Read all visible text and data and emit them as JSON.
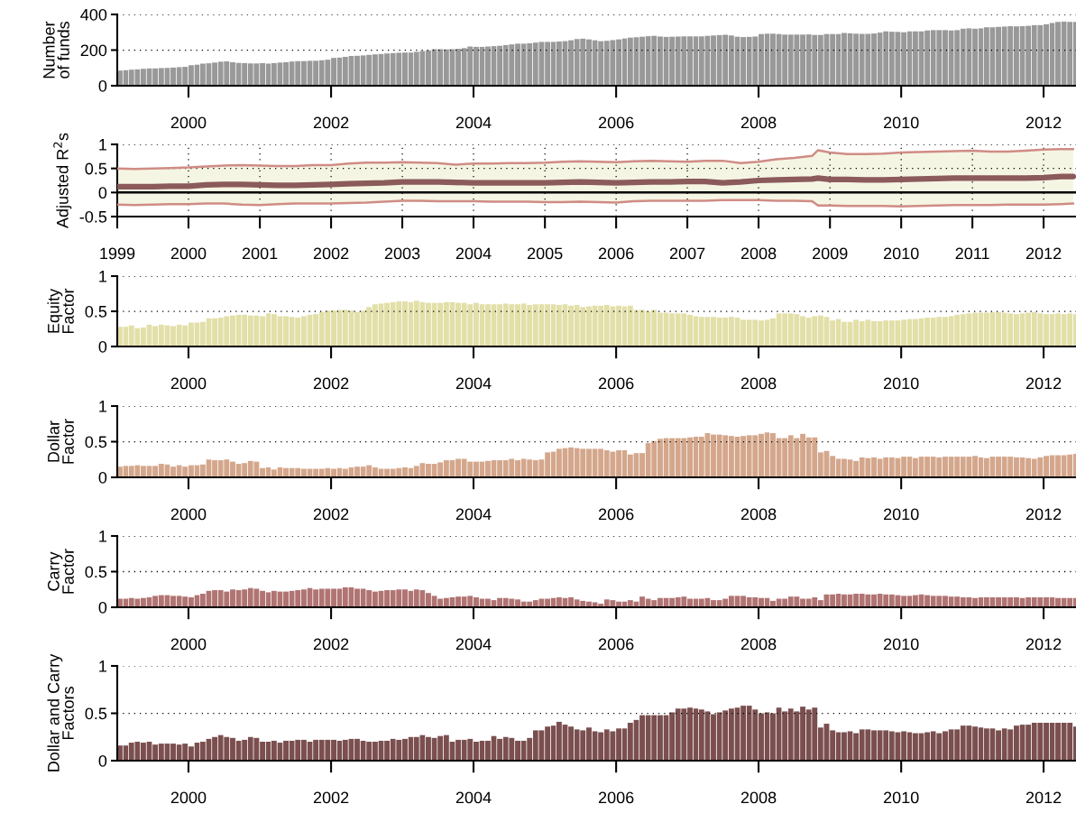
{
  "chart_data": [
    {
      "type": "bar",
      "ylabel": "Number\nof funds",
      "color": "#999999",
      "ylim": [
        0,
        400
      ],
      "yticks": [
        0,
        200,
        400
      ],
      "xlim": [
        "1999-01-01",
        "2012-06-15"
      ],
      "xticks": [
        "2000",
        "2002",
        "2004",
        "2006",
        "2008",
        "2010",
        "2012"
      ],
      "grid": "y",
      "x": [
        "1999-01",
        "1999-02",
        "1999-03",
        "1999-04",
        "1999-05",
        "1999-06",
        "1999-07",
        "1999-08",
        "1999-09",
        "1999-10",
        "1999-11",
        "1999-12",
        "2000-01",
        "2000-02",
        "2000-03",
        "2000-04",
        "2000-05",
        "2000-06",
        "2000-07",
        "2000-08",
        "2000-09",
        "2000-10",
        "2000-11",
        "2000-12",
        "2001-01",
        "2001-02",
        "2001-03",
        "2001-04",
        "2001-05",
        "2001-06",
        "2001-07",
        "2001-08",
        "2001-09",
        "2001-10",
        "2001-11",
        "2001-12",
        "2002-01",
        "2002-02",
        "2002-03",
        "2002-04",
        "2002-05",
        "2002-06",
        "2002-07",
        "2002-08",
        "2002-09",
        "2002-10",
        "2002-11",
        "2002-12",
        "2003-01",
        "2003-02",
        "2003-03",
        "2003-04",
        "2003-05",
        "2003-06",
        "2003-07",
        "2003-08",
        "2003-09",
        "2003-10",
        "2003-11",
        "2003-12",
        "2004-01",
        "2004-02",
        "2004-03",
        "2004-04",
        "2004-05",
        "2004-06",
        "2004-07",
        "2004-08",
        "2004-09",
        "2004-10",
        "2004-11",
        "2004-12",
        "2005-01",
        "2005-02",
        "2005-03",
        "2005-04",
        "2005-05",
        "2005-06",
        "2005-07",
        "2005-08",
        "2005-09",
        "2005-10",
        "2005-11",
        "2005-12",
        "2006-01",
        "2006-02",
        "2006-03",
        "2006-04",
        "2006-05",
        "2006-06",
        "2006-07",
        "2006-08",
        "2006-09",
        "2006-10",
        "2006-11",
        "2006-12",
        "2007-01",
        "2007-02",
        "2007-03",
        "2007-04",
        "2007-05",
        "2007-06",
        "2007-07",
        "2007-08",
        "2007-09",
        "2007-10",
        "2007-11",
        "2007-12",
        "2008-01",
        "2008-02",
        "2008-03",
        "2008-04",
        "2008-05",
        "2008-06",
        "2008-07",
        "2008-08",
        "2008-09",
        "2008-10",
        "2008-11",
        "2008-12",
        "2009-01",
        "2009-02",
        "2009-03",
        "2009-04",
        "2009-05",
        "2009-06",
        "2009-07",
        "2009-08",
        "2009-09",
        "2009-10",
        "2009-11",
        "2009-12",
        "2010-01",
        "2010-02",
        "2010-03",
        "2010-04",
        "2010-05",
        "2010-06",
        "2010-07",
        "2010-08",
        "2010-09",
        "2010-10",
        "2010-11",
        "2010-12",
        "2011-01",
        "2011-02",
        "2011-03",
        "2011-04",
        "2011-05",
        "2011-06",
        "2011-07",
        "2011-08",
        "2011-09",
        "2011-10",
        "2011-11",
        "2011-12",
        "2012-01",
        "2012-02",
        "2012-03",
        "2012-04",
        "2012-05",
        "2012-06"
      ],
      "values": [
        85,
        87,
        90,
        92,
        95,
        97,
        97,
        99,
        100,
        102,
        104,
        106,
        115,
        118,
        124,
        126,
        130,
        135,
        137,
        132,
        128,
        127,
        125,
        125,
        127,
        124,
        127,
        130,
        132,
        136,
        138,
        138,
        140,
        140,
        143,
        146,
        156,
        158,
        162,
        167,
        168,
        170,
        173,
        176,
        178,
        181,
        183,
        185,
        186,
        186,
        190,
        195,
        198,
        205,
        205,
        204,
        205,
        207,
        211,
        220,
        218,
        218,
        220,
        222,
        224,
        228,
        232,
        236,
        236,
        238,
        242,
        246,
        246,
        246,
        248,
        250,
        255,
        262,
        264,
        260,
        255,
        250,
        252,
        256,
        260,
        265,
        270,
        272,
        275,
        278,
        280,
        276,
        274,
        275,
        276,
        277,
        277,
        277,
        277,
        280,
        282,
        284,
        286,
        282,
        275,
        273,
        274,
        276,
        290,
        292,
        292,
        290,
        287,
        287,
        287,
        287,
        288,
        285,
        285,
        290,
        290,
        290,
        296,
        294,
        292,
        291,
        291,
        293,
        298,
        305,
        303,
        302,
        300,
        305,
        305,
        305,
        310,
        312,
        312,
        312,
        310,
        312,
        320,
        322,
        320,
        322,
        328,
        328,
        330,
        332,
        334,
        333,
        334,
        336,
        340,
        340,
        345,
        352,
        358,
        360,
        358,
        358
      ]
    },
    {
      "type": "line",
      "ylabel": "Adjusted R$^{2}$s",
      "ylim": [
        -0.5,
        1
      ],
      "yticks": [
        -0.5,
        0,
        0.5,
        1
      ],
      "xlim": [
        "1999-01-01",
        "2012-06-15"
      ],
      "xticks": [
        "1999",
        "2000",
        "2001",
        "2002",
        "2003",
        "2004",
        "2005",
        "2006",
        "2007",
        "2008",
        "2009",
        "2010",
        "2011",
        "2012"
      ],
      "grid": true,
      "ref_lines": [
        {
          "axis": "y",
          "value": 0,
          "color": "#000000"
        }
      ],
      "x": [
        "1999-01",
        "1999-04",
        "1999-07",
        "1999-10",
        "2000-01",
        "2000-04",
        "2000-07",
        "2000-10",
        "2001-01",
        "2001-04",
        "2001-07",
        "2001-10",
        "2002-01",
        "2002-04",
        "2002-07",
        "2002-10",
        "2003-01",
        "2003-04",
        "2003-07",
        "2003-10",
        "2004-01",
        "2004-04",
        "2004-07",
        "2004-10",
        "2005-01",
        "2005-04",
        "2005-07",
        "2005-10",
        "2006-01",
        "2006-04",
        "2006-07",
        "2006-10",
        "2007-01",
        "2007-04",
        "2007-07",
        "2007-10",
        "2008-01",
        "2008-04",
        "2008-07",
        "2008-10",
        "2008-11",
        "2009-01",
        "2009-04",
        "2009-07",
        "2009-10",
        "2010-01",
        "2010-04",
        "2010-07",
        "2010-10",
        "2011-01",
        "2011-04",
        "2011-07",
        "2011-10",
        "2012-01",
        "2012-04",
        "2012-06"
      ],
      "series": [
        {
          "color": "#d08c85",
          "values": [
            0.5,
            0.49,
            0.5,
            0.51,
            0.52,
            0.54,
            0.56,
            0.57,
            0.56,
            0.55,
            0.55,
            0.57,
            0.57,
            0.6,
            0.62,
            0.62,
            0.63,
            0.62,
            0.61,
            0.58,
            0.6,
            0.6,
            0.61,
            0.61,
            0.62,
            0.64,
            0.65,
            0.64,
            0.63,
            0.65,
            0.66,
            0.65,
            0.64,
            0.66,
            0.66,
            0.61,
            0.64,
            0.69,
            0.72,
            0.76,
            0.88,
            0.83,
            0.8,
            0.8,
            0.81,
            0.83,
            0.84,
            0.85,
            0.86,
            0.87,
            0.85,
            0.85,
            0.87,
            0.89,
            0.9,
            0.9
          ]
        },
        {
          "color": "#8b5a5a",
          "values": [
            0.12,
            0.12,
            0.12,
            0.13,
            0.13,
            0.16,
            0.17,
            0.17,
            0.16,
            0.15,
            0.15,
            0.16,
            0.17,
            0.18,
            0.19,
            0.2,
            0.22,
            0.22,
            0.22,
            0.21,
            0.2,
            0.2,
            0.2,
            0.2,
            0.2,
            0.21,
            0.22,
            0.21,
            0.2,
            0.21,
            0.22,
            0.22,
            0.23,
            0.23,
            0.2,
            0.22,
            0.25,
            0.26,
            0.27,
            0.28,
            0.3,
            0.27,
            0.27,
            0.26,
            0.26,
            0.27,
            0.28,
            0.29,
            0.3,
            0.3,
            0.3,
            0.3,
            0.3,
            0.31,
            0.33,
            0.33
          ],
          "lower": [
            -0.25,
            -0.26,
            -0.25,
            -0.24,
            -0.24,
            -0.23,
            -0.23,
            -0.25,
            -0.26,
            -0.24,
            -0.23,
            -0.23,
            -0.23,
            -0.22,
            -0.21,
            -0.19,
            -0.17,
            -0.17,
            -0.18,
            -0.18,
            -0.18,
            -0.19,
            -0.19,
            -0.19,
            -0.2,
            -0.2,
            -0.19,
            -0.2,
            -0.21,
            -0.18,
            -0.17,
            -0.17,
            -0.17,
            -0.17,
            -0.16,
            -0.16,
            -0.16,
            -0.17,
            -0.17,
            -0.18,
            -0.27,
            -0.27,
            -0.28,
            -0.28,
            -0.28,
            -0.29,
            -0.28,
            -0.27,
            -0.26,
            -0.26,
            -0.26,
            -0.25,
            -0.25,
            -0.25,
            -0.24,
            -0.23
          ],
          "upper": [
            0.5,
            0.49,
            0.5,
            0.51,
            0.52,
            0.54,
            0.56,
            0.57,
            0.56,
            0.55,
            0.55,
            0.57,
            0.57,
            0.6,
            0.62,
            0.62,
            0.63,
            0.62,
            0.61,
            0.58,
            0.6,
            0.6,
            0.61,
            0.61,
            0.62,
            0.64,
            0.65,
            0.64,
            0.63,
            0.65,
            0.66,
            0.65,
            0.64,
            0.66,
            0.66,
            0.61,
            0.64,
            0.69,
            0.72,
            0.76,
            0.88,
            0.83,
            0.8,
            0.8,
            0.81,
            0.83,
            0.84,
            0.85,
            0.86,
            0.87,
            0.85,
            0.85,
            0.87,
            0.89,
            0.9,
            0.9
          ]
        },
        {
          "color": "#d08c85",
          "values": [
            -0.25,
            -0.26,
            -0.25,
            -0.24,
            -0.24,
            -0.23,
            -0.23,
            -0.25,
            -0.26,
            -0.24,
            -0.23,
            -0.23,
            -0.23,
            -0.22,
            -0.21,
            -0.19,
            -0.17,
            -0.17,
            -0.18,
            -0.18,
            -0.18,
            -0.19,
            -0.19,
            -0.19,
            -0.2,
            -0.2,
            -0.19,
            -0.2,
            -0.21,
            -0.18,
            -0.17,
            -0.17,
            -0.17,
            -0.17,
            -0.16,
            -0.16,
            -0.16,
            -0.17,
            -0.17,
            -0.18,
            -0.27,
            -0.27,
            -0.28,
            -0.28,
            -0.28,
            -0.29,
            -0.28,
            -0.27,
            -0.26,
            -0.26,
            -0.26,
            -0.25,
            -0.25,
            -0.25,
            -0.24,
            -0.23
          ]
        }
      ]
    },
    {
      "type": "bar",
      "ylabel": "Equity\nFactor",
      "color": "#e2dfa8",
      "ylim": [
        0,
        1
      ],
      "yticks": [
        0,
        0.5,
        1
      ],
      "xlim": [
        "1999-01-01",
        "2012-06-15"
      ],
      "xticks": [
        "2000",
        "2002",
        "2004",
        "2006",
        "2008",
        "2010",
        "2012"
      ],
      "grid": "y",
      "x": [
        "1999-01",
        "1999-02",
        "1999-03",
        "1999-04",
        "1999-05",
        "1999-06",
        "1999-07",
        "1999-08",
        "1999-09",
        "1999-10",
        "1999-11",
        "1999-12",
        "2000-01",
        "2000-02",
        "2000-03",
        "2000-04",
        "2000-05",
        "2000-06",
        "2000-07",
        "2000-08",
        "2000-09",
        "2000-10",
        "2000-11",
        "2000-12",
        "2001-01",
        "2001-02",
        "2001-03",
        "2001-04",
        "2001-05",
        "2001-06",
        "2001-07",
        "2001-08",
        "2001-09",
        "2001-10",
        "2001-11",
        "2001-12",
        "2002-01",
        "2002-02",
        "2002-03",
        "2002-04",
        "2002-05",
        "2002-06",
        "2002-07",
        "2002-08",
        "2002-09",
        "2002-10",
        "2002-11",
        "2002-12",
        "2003-01",
        "2003-02",
        "2003-03",
        "2003-04",
        "2003-05",
        "2003-06",
        "2003-07",
        "2003-08",
        "2003-09",
        "2003-10",
        "2003-11",
        "2003-12",
        "2004-01",
        "2004-02",
        "2004-03",
        "2004-04",
        "2004-05",
        "2004-06",
        "2004-07",
        "2004-08",
        "2004-09",
        "2004-10",
        "2004-11",
        "2004-12",
        "2005-01",
        "2005-02",
        "2005-03",
        "2005-04",
        "2005-05",
        "2005-06",
        "2005-07",
        "2005-08",
        "2005-09",
        "2005-10",
        "2005-11",
        "2005-12",
        "2006-01",
        "2006-02",
        "2006-03",
        "2006-04",
        "2006-05",
        "2006-06",
        "2006-07",
        "2006-08",
        "2006-09",
        "2006-10",
        "2006-11",
        "2006-12",
        "2007-01",
        "2007-02",
        "2007-03",
        "2007-04",
        "2007-05",
        "2007-06",
        "2007-07",
        "2007-08",
        "2007-09",
        "2007-10",
        "2007-11",
        "2007-12",
        "2008-01",
        "2008-02",
        "2008-03",
        "2008-04",
        "2008-05",
        "2008-06",
        "2008-07",
        "2008-08",
        "2008-09",
        "2008-10",
        "2008-11",
        "2008-12",
        "2009-01",
        "2009-02",
        "2009-03",
        "2009-04",
        "2009-05",
        "2009-06",
        "2009-07",
        "2009-08",
        "2009-09",
        "2009-10",
        "2009-11",
        "2009-12",
        "2010-01",
        "2010-02",
        "2010-03",
        "2010-04",
        "2010-05",
        "2010-06",
        "2010-07",
        "2010-08",
        "2010-09",
        "2010-10",
        "2010-11",
        "2010-12",
        "2011-01",
        "2011-02",
        "2011-03",
        "2011-04",
        "2011-05",
        "2011-06",
        "2011-07",
        "2011-08",
        "2011-09",
        "2011-10",
        "2011-11",
        "2011-12",
        "2012-01",
        "2012-02",
        "2012-03",
        "2012-04",
        "2012-05",
        "2012-06"
      ],
      "values": [
        0.28,
        0.28,
        0.3,
        0.26,
        0.27,
        0.31,
        0.29,
        0.31,
        0.3,
        0.29,
        0.31,
        0.3,
        0.34,
        0.34,
        0.35,
        0.4,
        0.4,
        0.41,
        0.43,
        0.44,
        0.45,
        0.45,
        0.44,
        0.44,
        0.43,
        0.47,
        0.46,
        0.43,
        0.43,
        0.42,
        0.41,
        0.43,
        0.45,
        0.46,
        0.49,
        0.51,
        0.51,
        0.52,
        0.52,
        0.51,
        0.49,
        0.51,
        0.56,
        0.6,
        0.61,
        0.62,
        0.63,
        0.64,
        0.64,
        0.63,
        0.65,
        0.63,
        0.62,
        0.62,
        0.62,
        0.63,
        0.63,
        0.62,
        0.62,
        0.6,
        0.62,
        0.6,
        0.6,
        0.6,
        0.6,
        0.61,
        0.6,
        0.6,
        0.61,
        0.59,
        0.6,
        0.6,
        0.6,
        0.6,
        0.59,
        0.6,
        0.58,
        0.59,
        0.56,
        0.57,
        0.58,
        0.58,
        0.59,
        0.57,
        0.58,
        0.57,
        0.58,
        0.52,
        0.52,
        0.5,
        0.52,
        0.48,
        0.48,
        0.47,
        0.47,
        0.47,
        0.45,
        0.43,
        0.42,
        0.42,
        0.42,
        0.41,
        0.41,
        0.42,
        0.41,
        0.38,
        0.38,
        0.38,
        0.37,
        0.38,
        0.4,
        0.47,
        0.47,
        0.47,
        0.46,
        0.43,
        0.41,
        0.43,
        0.44,
        0.42,
        0.37,
        0.39,
        0.35,
        0.35,
        0.38,
        0.36,
        0.38,
        0.36,
        0.36,
        0.37,
        0.37,
        0.37,
        0.38,
        0.39,
        0.39,
        0.4,
        0.41,
        0.41,
        0.42,
        0.42,
        0.43,
        0.45,
        0.46,
        0.47,
        0.48,
        0.48,
        0.48,
        0.49,
        0.49,
        0.48,
        0.47,
        0.46,
        0.47,
        0.48,
        0.49,
        0.47,
        0.46,
        0.46,
        0.47,
        0.46,
        0.47,
        0.46
      ]
    },
    {
      "type": "bar",
      "ylabel": "Dollar\nFactor",
      "color": "#d4a78c",
      "ylim": [
        0,
        1
      ],
      "yticks": [
        0,
        0.5,
        1
      ],
      "xlim": [
        "1999-01-01",
        "2012-06-15"
      ],
      "xticks": [
        "2000",
        "2002",
        "2004",
        "2006",
        "2008",
        "2010",
        "2012"
      ],
      "grid": "y",
      "x": [
        "1999-01",
        "1999-02",
        "1999-03",
        "1999-04",
        "1999-05",
        "1999-06",
        "1999-07",
        "1999-08",
        "1999-09",
        "1999-10",
        "1999-11",
        "1999-12",
        "2000-01",
        "2000-02",
        "2000-03",
        "2000-04",
        "2000-05",
        "2000-06",
        "2000-07",
        "2000-08",
        "2000-09",
        "2000-10",
        "2000-11",
        "2000-12",
        "2001-01",
        "2001-02",
        "2001-03",
        "2001-04",
        "2001-05",
        "2001-06",
        "2001-07",
        "2001-08",
        "2001-09",
        "2001-10",
        "2001-11",
        "2001-12",
        "2002-01",
        "2002-02",
        "2002-03",
        "2002-04",
        "2002-05",
        "2002-06",
        "2002-07",
        "2002-08",
        "2002-09",
        "2002-10",
        "2002-11",
        "2002-12",
        "2003-01",
        "2003-02",
        "2003-03",
        "2003-04",
        "2003-05",
        "2003-06",
        "2003-07",
        "2003-08",
        "2003-09",
        "2003-10",
        "2003-11",
        "2003-12",
        "2004-01",
        "2004-02",
        "2004-03",
        "2004-04",
        "2004-05",
        "2004-06",
        "2004-07",
        "2004-08",
        "2004-09",
        "2004-10",
        "2004-11",
        "2004-12",
        "2005-01",
        "2005-02",
        "2005-03",
        "2005-04",
        "2005-05",
        "2005-06",
        "2005-07",
        "2005-08",
        "2005-09",
        "2005-10",
        "2005-11",
        "2005-12",
        "2006-01",
        "2006-02",
        "2006-03",
        "2006-04",
        "2006-05",
        "2006-06",
        "2006-07",
        "2006-08",
        "2006-09",
        "2006-10",
        "2006-11",
        "2006-12",
        "2007-01",
        "2007-02",
        "2007-03",
        "2007-04",
        "2007-05",
        "2007-06",
        "2007-07",
        "2007-08",
        "2007-09",
        "2007-10",
        "2007-11",
        "2007-12",
        "2008-01",
        "2008-02",
        "2008-03",
        "2008-04",
        "2008-05",
        "2008-06",
        "2008-07",
        "2008-08",
        "2008-09",
        "2008-10",
        "2008-11",
        "2008-12",
        "2009-01",
        "2009-02",
        "2009-03",
        "2009-04",
        "2009-05",
        "2009-06",
        "2009-07",
        "2009-08",
        "2009-09",
        "2009-10",
        "2009-11",
        "2009-12",
        "2010-01",
        "2010-02",
        "2010-03",
        "2010-04",
        "2010-05",
        "2010-06",
        "2010-07",
        "2010-08",
        "2010-09",
        "2010-10",
        "2010-11",
        "2010-12",
        "2011-01",
        "2011-02",
        "2011-03",
        "2011-04",
        "2011-05",
        "2011-06",
        "2011-07",
        "2011-08",
        "2011-09",
        "2011-10",
        "2011-11",
        "2011-12",
        "2012-01",
        "2012-02",
        "2012-03",
        "2012-04",
        "2012-05",
        "2012-06"
      ],
      "values": [
        0.15,
        0.16,
        0.16,
        0.17,
        0.16,
        0.16,
        0.16,
        0.19,
        0.18,
        0.15,
        0.17,
        0.15,
        0.17,
        0.17,
        0.18,
        0.25,
        0.24,
        0.24,
        0.25,
        0.22,
        0.19,
        0.2,
        0.23,
        0.22,
        0.13,
        0.14,
        0.11,
        0.14,
        0.13,
        0.13,
        0.13,
        0.12,
        0.12,
        0.12,
        0.12,
        0.13,
        0.12,
        0.13,
        0.12,
        0.14,
        0.15,
        0.15,
        0.17,
        0.14,
        0.12,
        0.12,
        0.12,
        0.13,
        0.14,
        0.13,
        0.16,
        0.2,
        0.19,
        0.19,
        0.21,
        0.24,
        0.24,
        0.26,
        0.26,
        0.22,
        0.22,
        0.22,
        0.23,
        0.24,
        0.24,
        0.24,
        0.26,
        0.24,
        0.26,
        0.25,
        0.24,
        0.25,
        0.35,
        0.36,
        0.4,
        0.41,
        0.42,
        0.41,
        0.4,
        0.4,
        0.4,
        0.4,
        0.38,
        0.36,
        0.38,
        0.38,
        0.32,
        0.34,
        0.34,
        0.48,
        0.51,
        0.54,
        0.55,
        0.55,
        0.55,
        0.55,
        0.56,
        0.57,
        0.57,
        0.62,
        0.6,
        0.6,
        0.59,
        0.58,
        0.57,
        0.58,
        0.59,
        0.59,
        0.61,
        0.63,
        0.62,
        0.55,
        0.55,
        0.59,
        0.55,
        0.61,
        0.56,
        0.56,
        0.35,
        0.37,
        0.3,
        0.26,
        0.26,
        0.25,
        0.23,
        0.28,
        0.27,
        0.28,
        0.26,
        0.28,
        0.28,
        0.27,
        0.29,
        0.29,
        0.27,
        0.29,
        0.29,
        0.29,
        0.28,
        0.29,
        0.29,
        0.29,
        0.29,
        0.29,
        0.3,
        0.28,
        0.27,
        0.29,
        0.29,
        0.29,
        0.29,
        0.28,
        0.28,
        0.27,
        0.26,
        0.28,
        0.3,
        0.31,
        0.31,
        0.31,
        0.32,
        0.33
      ]
    },
    {
      "type": "bar",
      "ylabel": "Carry\nFactor",
      "color": "#b07473",
      "ylim": [
        0,
        1
      ],
      "yticks": [
        0,
        0.5,
        1
      ],
      "xlim": [
        "1999-01-01",
        "2012-06-15"
      ],
      "xticks": [
        "2000",
        "2002",
        "2004",
        "2006",
        "2008",
        "2010",
        "2012"
      ],
      "grid": "y",
      "x": [
        "1999-01",
        "1999-02",
        "1999-03",
        "1999-04",
        "1999-05",
        "1999-06",
        "1999-07",
        "1999-08",
        "1999-09",
        "1999-10",
        "1999-11",
        "1999-12",
        "2000-01",
        "2000-02",
        "2000-03",
        "2000-04",
        "2000-05",
        "2000-06",
        "2000-07",
        "2000-08",
        "2000-09",
        "2000-10",
        "2000-11",
        "2000-12",
        "2001-01",
        "2001-02",
        "2001-03",
        "2001-04",
        "2001-05",
        "2001-06",
        "2001-07",
        "2001-08",
        "2001-09",
        "2001-10",
        "2001-11",
        "2001-12",
        "2002-01",
        "2002-02",
        "2002-03",
        "2002-04",
        "2002-05",
        "2002-06",
        "2002-07",
        "2002-08",
        "2002-09",
        "2002-10",
        "2002-11",
        "2002-12",
        "2003-01",
        "2003-02",
        "2003-03",
        "2003-04",
        "2003-05",
        "2003-06",
        "2003-07",
        "2003-08",
        "2003-09",
        "2003-10",
        "2003-11",
        "2003-12",
        "2004-01",
        "2004-02",
        "2004-03",
        "2004-04",
        "2004-05",
        "2004-06",
        "2004-07",
        "2004-08",
        "2004-09",
        "2004-10",
        "2004-11",
        "2004-12",
        "2005-01",
        "2005-02",
        "2005-03",
        "2005-04",
        "2005-05",
        "2005-06",
        "2005-07",
        "2005-08",
        "2005-09",
        "2005-10",
        "2005-11",
        "2005-12",
        "2006-01",
        "2006-02",
        "2006-03",
        "2006-04",
        "2006-05",
        "2006-06",
        "2006-07",
        "2006-08",
        "2006-09",
        "2006-10",
        "2006-11",
        "2006-12",
        "2007-01",
        "2007-02",
        "2007-03",
        "2007-04",
        "2007-05",
        "2007-06",
        "2007-07",
        "2007-08",
        "2007-09",
        "2007-10",
        "2007-11",
        "2007-12",
        "2008-01",
        "2008-02",
        "2008-03",
        "2008-04",
        "2008-05",
        "2008-06",
        "2008-07",
        "2008-08",
        "2008-09",
        "2008-10",
        "2008-11",
        "2008-12",
        "2009-01",
        "2009-02",
        "2009-03",
        "2009-04",
        "2009-05",
        "2009-06",
        "2009-07",
        "2009-08",
        "2009-09",
        "2009-10",
        "2009-11",
        "2009-12",
        "2010-01",
        "2010-02",
        "2010-03",
        "2010-04",
        "2010-05",
        "2010-06",
        "2010-07",
        "2010-08",
        "2010-09",
        "2010-10",
        "2010-11",
        "2010-12",
        "2011-01",
        "2011-02",
        "2011-03",
        "2011-04",
        "2011-05",
        "2011-06",
        "2011-07",
        "2011-08",
        "2011-09",
        "2011-10",
        "2011-11",
        "2011-12",
        "2012-01",
        "2012-02",
        "2012-03",
        "2012-04",
        "2012-05",
        "2012-06"
      ],
      "values": [
        0.12,
        0.12,
        0.13,
        0.12,
        0.13,
        0.14,
        0.16,
        0.17,
        0.17,
        0.16,
        0.16,
        0.15,
        0.14,
        0.17,
        0.19,
        0.23,
        0.24,
        0.24,
        0.22,
        0.25,
        0.24,
        0.25,
        0.27,
        0.26,
        0.23,
        0.21,
        0.23,
        0.22,
        0.22,
        0.23,
        0.24,
        0.25,
        0.27,
        0.25,
        0.26,
        0.26,
        0.26,
        0.26,
        0.28,
        0.28,
        0.26,
        0.26,
        0.24,
        0.22,
        0.23,
        0.24,
        0.24,
        0.25,
        0.25,
        0.23,
        0.25,
        0.24,
        0.2,
        0.16,
        0.12,
        0.13,
        0.14,
        0.15,
        0.15,
        0.16,
        0.14,
        0.12,
        0.12,
        0.1,
        0.13,
        0.13,
        0.12,
        0.11,
        0.08,
        0.08,
        0.1,
        0.12,
        0.12,
        0.13,
        0.14,
        0.13,
        0.14,
        0.11,
        0.09,
        0.08,
        0.07,
        0.05,
        0.11,
        0.1,
        0.08,
        0.08,
        0.1,
        0.08,
        0.15,
        0.12,
        0.1,
        0.13,
        0.13,
        0.13,
        0.14,
        0.15,
        0.12,
        0.12,
        0.12,
        0.13,
        0.1,
        0.1,
        0.12,
        0.16,
        0.16,
        0.16,
        0.14,
        0.14,
        0.13,
        0.13,
        0.09,
        0.12,
        0.12,
        0.15,
        0.15,
        0.12,
        0.12,
        0.14,
        0.1,
        0.18,
        0.18,
        0.19,
        0.18,
        0.18,
        0.19,
        0.19,
        0.18,
        0.18,
        0.19,
        0.18,
        0.18,
        0.17,
        0.16,
        0.16,
        0.17,
        0.18,
        0.17,
        0.16,
        0.16,
        0.16,
        0.15,
        0.15,
        0.14,
        0.14,
        0.13,
        0.14,
        0.14,
        0.14,
        0.14,
        0.14,
        0.14,
        0.14,
        0.13,
        0.14,
        0.14,
        0.14,
        0.14,
        0.14,
        0.13,
        0.13,
        0.13,
        0.13
      ]
    },
    {
      "type": "bar",
      "ylabel": "Dollar and Carry\nFactors",
      "color": "#7b4f4f",
      "ylim": [
        0,
        1
      ],
      "yticks": [
        0,
        0.5,
        1
      ],
      "xlim": [
        "1999-01-01",
        "2012-06-15"
      ],
      "xticks": [
        "2000",
        "2002",
        "2004",
        "2006",
        "2008",
        "2010",
        "2012"
      ],
      "grid": "y",
      "x": [
        "1999-01",
        "1999-02",
        "1999-03",
        "1999-04",
        "1999-05",
        "1999-06",
        "1999-07",
        "1999-08",
        "1999-09",
        "1999-10",
        "1999-11",
        "1999-12",
        "2000-01",
        "2000-02",
        "2000-03",
        "2000-04",
        "2000-05",
        "2000-06",
        "2000-07",
        "2000-08",
        "2000-09",
        "2000-10",
        "2000-11",
        "2000-12",
        "2001-01",
        "2001-02",
        "2001-03",
        "2001-04",
        "2001-05",
        "2001-06",
        "2001-07",
        "2001-08",
        "2001-09",
        "2001-10",
        "2001-11",
        "2001-12",
        "2002-01",
        "2002-02",
        "2002-03",
        "2002-04",
        "2002-05",
        "2002-06",
        "2002-07",
        "2002-08",
        "2002-09",
        "2002-10",
        "2002-11",
        "2002-12",
        "2003-01",
        "2003-02",
        "2003-03",
        "2003-04",
        "2003-05",
        "2003-06",
        "2003-07",
        "2003-08",
        "2003-09",
        "2003-10",
        "2003-11",
        "2003-12",
        "2004-01",
        "2004-02",
        "2004-03",
        "2004-04",
        "2004-05",
        "2004-06",
        "2004-07",
        "2004-08",
        "2004-09",
        "2004-10",
        "2004-11",
        "2004-12",
        "2005-01",
        "2005-02",
        "2005-03",
        "2005-04",
        "2005-05",
        "2005-06",
        "2005-07",
        "2005-08",
        "2005-09",
        "2005-10",
        "2005-11",
        "2005-12",
        "2006-01",
        "2006-02",
        "2006-03",
        "2006-04",
        "2006-05",
        "2006-06",
        "2006-07",
        "2006-08",
        "2006-09",
        "2006-10",
        "2006-11",
        "2006-12",
        "2007-01",
        "2007-02",
        "2007-03",
        "2007-04",
        "2007-05",
        "2007-06",
        "2007-07",
        "2007-08",
        "2007-09",
        "2007-10",
        "2007-11",
        "2007-12",
        "2008-01",
        "2008-02",
        "2008-03",
        "2008-04",
        "2008-05",
        "2008-06",
        "2008-07",
        "2008-08",
        "2008-09",
        "2008-10",
        "2008-11",
        "2008-12",
        "2009-01",
        "2009-02",
        "2009-03",
        "2009-04",
        "2009-05",
        "2009-06",
        "2009-07",
        "2009-08",
        "2009-09",
        "2009-10",
        "2009-11",
        "2009-12",
        "2010-01",
        "2010-02",
        "2010-03",
        "2010-04",
        "2010-05",
        "2010-06",
        "2010-07",
        "2010-08",
        "2010-09",
        "2010-10",
        "2010-11",
        "2010-12",
        "2011-01",
        "2011-02",
        "2011-03",
        "2011-04",
        "2011-05",
        "2011-06",
        "2011-07",
        "2011-08",
        "2011-09",
        "2011-10",
        "2011-11",
        "2011-12",
        "2012-01",
        "2012-02",
        "2012-03",
        "2012-04",
        "2012-05",
        "2012-06"
      ],
      "values": [
        0.16,
        0.16,
        0.19,
        0.2,
        0.19,
        0.2,
        0.17,
        0.18,
        0.18,
        0.18,
        0.17,
        0.18,
        0.15,
        0.19,
        0.2,
        0.23,
        0.25,
        0.27,
        0.25,
        0.24,
        0.21,
        0.22,
        0.25,
        0.24,
        0.2,
        0.2,
        0.21,
        0.19,
        0.21,
        0.21,
        0.22,
        0.22,
        0.2,
        0.22,
        0.22,
        0.22,
        0.22,
        0.21,
        0.22,
        0.23,
        0.23,
        0.21,
        0.2,
        0.2,
        0.21,
        0.21,
        0.23,
        0.22,
        0.23,
        0.25,
        0.25,
        0.27,
        0.25,
        0.24,
        0.26,
        0.27,
        0.2,
        0.22,
        0.22,
        0.23,
        0.2,
        0.21,
        0.21,
        0.26,
        0.23,
        0.25,
        0.24,
        0.21,
        0.21,
        0.24,
        0.32,
        0.32,
        0.36,
        0.37,
        0.41,
        0.38,
        0.36,
        0.33,
        0.32,
        0.35,
        0.31,
        0.3,
        0.33,
        0.31,
        0.34,
        0.34,
        0.4,
        0.43,
        0.48,
        0.48,
        0.48,
        0.48,
        0.48,
        0.51,
        0.55,
        0.55,
        0.56,
        0.55,
        0.54,
        0.52,
        0.49,
        0.51,
        0.53,
        0.55,
        0.56,
        0.58,
        0.58,
        0.54,
        0.5,
        0.51,
        0.5,
        0.56,
        0.52,
        0.55,
        0.52,
        0.57,
        0.54,
        0.56,
        0.35,
        0.39,
        0.32,
        0.3,
        0.3,
        0.31,
        0.29,
        0.33,
        0.33,
        0.32,
        0.32,
        0.32,
        0.31,
        0.3,
        0.31,
        0.3,
        0.29,
        0.29,
        0.3,
        0.31,
        0.29,
        0.31,
        0.33,
        0.33,
        0.37,
        0.37,
        0.36,
        0.35,
        0.34,
        0.34,
        0.32,
        0.34,
        0.33,
        0.37,
        0.38,
        0.38,
        0.4,
        0.4,
        0.4,
        0.4,
        0.4,
        0.4,
        0.4,
        0.36
      ]
    }
  ]
}
